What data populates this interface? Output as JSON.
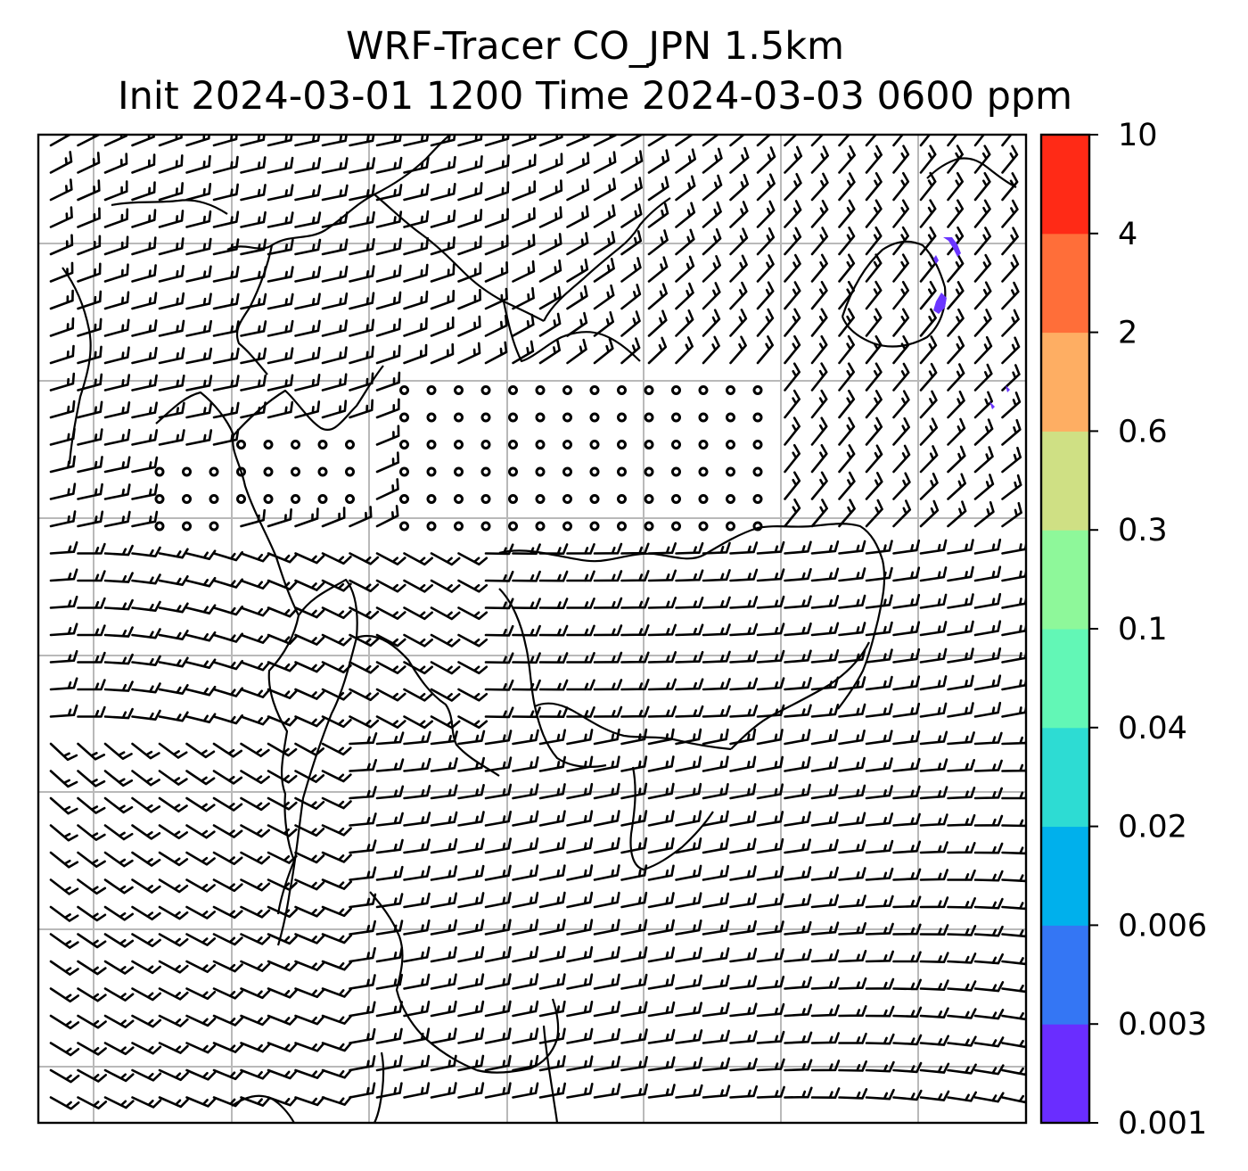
{
  "title": {
    "line1": "WRF-Tracer CO_JPN 1.5km",
    "line2": "Init 2024-03-01 1200 Time 2024-03-03 0600 ppm"
  },
  "map": {
    "grid_color": "#b9b9b9",
    "coast_color": "#000000",
    "barb_color": "#000000",
    "tracer_patch_color": "#6a35ff"
  },
  "colorbar": {
    "levels": [
      "0.001",
      "0.003",
      "0.006",
      "0.02",
      "0.04",
      "0.1",
      "0.3",
      "0.6",
      "2",
      "4",
      "10"
    ],
    "colors": [
      "#6a2dff",
      "#3476f4",
      "#00b0ec",
      "#2ddcd3",
      "#62f7b6",
      "#8ef89a",
      "#cfe084",
      "#feae63",
      "#ff6e39",
      "#ff2a16"
    ]
  }
}
